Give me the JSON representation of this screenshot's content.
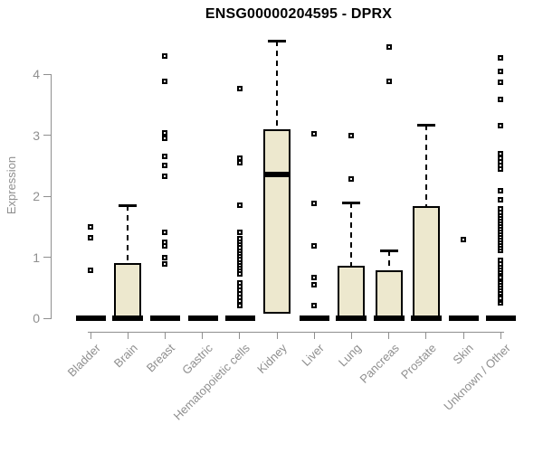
{
  "title": "ENSG00000204595 - DPRX",
  "chart_data": {
    "type": "boxplot",
    "title": "ENSG00000204595 - DPRX",
    "xlabel": "",
    "ylabel": "Expression",
    "ylim": [
      0,
      4.6
    ],
    "yticks": [
      0,
      1,
      2,
      3,
      4
    ],
    "grid": false,
    "legend": false,
    "categories": [
      "Bladder",
      "Brain",
      "Breast",
      "Gastric",
      "Hematopoietic cells",
      "Kidney",
      "Liver",
      "Lung",
      "Pancreas",
      "Prostate",
      "Skin",
      "Unknown / Other"
    ],
    "boxes": [
      {
        "category": "Bladder",
        "q1": 0,
        "median": 0,
        "q3": 0,
        "whisker_low": 0,
        "whisker_high": 0,
        "outliers": [
          0.78,
          1.32,
          1.5
        ]
      },
      {
        "category": "Brain",
        "q1": 0,
        "median": 0,
        "q3": 0.91,
        "whisker_low": 0,
        "whisker_high": 1.85,
        "outliers": []
      },
      {
        "category": "Breast",
        "q1": 0,
        "median": 0,
        "q3": 0,
        "whisker_low": 0,
        "whisker_high": 0,
        "outliers": [
          0.89,
          0.99,
          1.18,
          1.25,
          1.41,
          2.33,
          2.5,
          2.65,
          2.95,
          3.04,
          3.88,
          4.3
        ]
      },
      {
        "category": "Gastric",
        "q1": 0,
        "median": 0,
        "q3": 0,
        "whisker_low": 0,
        "whisker_high": 0,
        "outliers": []
      },
      {
        "category": "Hematopoietic cells",
        "q1": 0,
        "median": 0,
        "q3": 0,
        "whisker_low": 0,
        "whisker_high": 0,
        "outliers": [
          0.21,
          0.28,
          0.34,
          0.4,
          0.46,
          0.52,
          0.58,
          0.73,
          0.78,
          0.83,
          0.88,
          0.92,
          0.97,
          1.02,
          1.07,
          1.11,
          1.16,
          1.21,
          1.26,
          1.3,
          1.41,
          1.85,
          2.55,
          2.62,
          3.76
        ]
      },
      {
        "category": "Kidney",
        "q1": 0.08,
        "median": 2.36,
        "q3": 3.09,
        "whisker_low": 0.08,
        "whisker_high": 4.55,
        "outliers": []
      },
      {
        "category": "Liver",
        "q1": 0,
        "median": 0,
        "q3": 0,
        "whisker_low": 0,
        "whisker_high": 0,
        "outliers": [
          0.21,
          0.55,
          0.67,
          1.19,
          1.88,
          3.02
        ]
      },
      {
        "category": "Lung",
        "q1": 0,
        "median": 0,
        "q3": 0.86,
        "whisker_low": 0,
        "whisker_high": 1.9,
        "outliers": [
          2.28,
          2.99
        ]
      },
      {
        "category": "Pancreas",
        "q1": 0,
        "median": 0,
        "q3": 0.78,
        "whisker_low": 0,
        "whisker_high": 1.11,
        "outliers": [
          3.88,
          4.45
        ]
      },
      {
        "category": "Prostate",
        "q1": 0,
        "median": 0,
        "q3": 1.84,
        "whisker_low": 0,
        "whisker_high": 3.17,
        "outliers": []
      },
      {
        "category": "Skin",
        "q1": 0,
        "median": 0,
        "q3": 0,
        "whisker_low": 0,
        "whisker_high": 0,
        "outliers": [
          1.29
        ]
      },
      {
        "category": "Unknown / Other",
        "q1": 0,
        "median": 0,
        "q3": 0,
        "whisker_low": 0,
        "whisker_high": 0,
        "outliers": [
          0.25,
          0.29,
          0.33,
          0.38,
          0.42,
          0.46,
          0.5,
          0.55,
          0.59,
          0.63,
          0.67,
          0.72,
          0.76,
          0.8,
          0.84,
          0.89,
          0.95,
          1.11,
          1.15,
          1.2,
          1.24,
          1.29,
          1.33,
          1.38,
          1.42,
          1.47,
          1.51,
          1.56,
          1.6,
          1.65,
          1.69,
          1.74,
          1.8,
          1.94,
          2.09,
          2.44,
          2.5,
          2.56,
          2.62,
          2.69,
          3.15,
          3.59,
          3.86,
          4.05,
          4.26
        ]
      }
    ],
    "colors": {
      "box_fill": "#EDE8CE",
      "box_border": "#000000",
      "axis": "#8F8F8F",
      "tick_text": "#8F8F8F",
      "title_text": "#000000",
      "background": "#FFFFFF"
    }
  }
}
